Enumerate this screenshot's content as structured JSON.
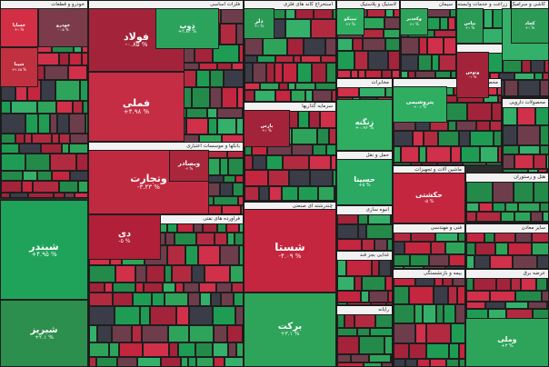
{
  "chart_data": {
    "type": "heatmap",
    "sectors": [
      {
        "key": "khodro",
        "label": "خودرو و قطعات"
      },
      {
        "key": "felezat",
        "label": "فلزات اساسی"
      },
      {
        "key": "banks",
        "label": "بانکها و موسسات اعتباری"
      },
      {
        "key": "mali",
        "label": "فراورده های نفتی"
      },
      {
        "key": "kani",
        "label": "استخراج کانه های فلزی"
      },
      {
        "key": "lastik",
        "label": "لاستیک و پلاستیک"
      },
      {
        "key": "siman",
        "label": "سیمان"
      },
      {
        "key": "zeraat",
        "label": "زراعت و خدمات وابسته"
      },
      {
        "key": "kashi",
        "label": "کاشی و سرامیک"
      },
      {
        "key": "ghand",
        "label": "قند و شکر"
      },
      {
        "key": "sarmaye",
        "label": "سرمایه گذاریها"
      },
      {
        "key": "mokhaberat",
        "label": "مخابرات"
      },
      {
        "key": "shimi",
        "label": "محصولات شیمیایی"
      },
      {
        "key": "daroo",
        "label": "محصولات دارویی"
      },
      {
        "key": "haml",
        "label": "حمل و نقل"
      },
      {
        "key": "chandreshte",
        "label": "چندرشته ای صنعتی"
      },
      {
        "key": "electric",
        "label": "ماشین آلات و تجهیزات"
      },
      {
        "key": "hoteling",
        "label": "هتل و رستوران"
      },
      {
        "key": "sakhteman",
        "label": "انبوه سازی"
      },
      {
        "key": "ghaza",
        "label": "غذایی بجز قند"
      },
      {
        "key": "fanni",
        "label": "فنی و مهندسی"
      },
      {
        "key": "madan",
        "label": "سایر معادن"
      },
      {
        "key": "kaghaz",
        "label": "محصولات کاغذی"
      },
      {
        "key": "narmafzar",
        "label": "رایانه"
      },
      {
        "key": "bime",
        "label": "بیمه و بازنشستگی"
      },
      {
        "key": "bargh",
        "label": "عرضه برق"
      }
    ],
    "tiles": [
      {
        "symbol": "شپنا",
        "change": "+۲.۷۵ %"
      },
      {
        "symbol": "شبندر",
        "change": "+۴.۹۵ %"
      },
      {
        "symbol": "شبریز",
        "change": "+۲.۱ %"
      },
      {
        "symbol": "فولاد",
        "change": "-۰.۸۵ %"
      },
      {
        "symbol": "فملی",
        "change": "+۴.۹۸ %"
      },
      {
        "symbol": "وتجارت",
        "change": "-۳.۴۳ %"
      },
      {
        "symbol": "دی",
        "change": "-۵ %"
      },
      {
        "symbol": "وبصادر",
        "change": "-۲ %"
      },
      {
        "symbol": "ذوب",
        "change": "+۲.۸۳ %"
      },
      {
        "symbol": "شستا",
        "change": "-۴.۰۹ %"
      },
      {
        "symbol": "برکت",
        "change": "+۳.۱ %"
      },
      {
        "symbol": "زنگنه",
        "change": "+۰.۹۶ %"
      },
      {
        "symbol": "حسینا",
        "change": "+۵ %"
      },
      {
        "symbol": "حکشتی",
        "change": "-۵ %"
      },
      {
        "symbol": "کگل",
        "change": "+۲.۵ %"
      },
      {
        "symbol": "وملی",
        "change": "+۳ %"
      },
      {
        "symbol": "دلر",
        "change": "+۱ %"
      },
      {
        "symbol": "وکغدیر",
        "change": "+۲ %"
      },
      {
        "symbol": "تیپیکو",
        "change": "+۲ %"
      },
      {
        "symbol": "بپاس",
        "change": "+۱ %"
      },
      {
        "symbol": "وتوس",
        "change": "-۱ %"
      },
      {
        "symbol": "کچاد",
        "change": "+۱ %"
      },
      {
        "symbol": "خودرو",
        "change": "-۰.۵ %"
      },
      {
        "symbol": "خساپا",
        "change": "+۱ %"
      },
      {
        "symbol": "پارس",
        "change": "+۱ %"
      },
      {
        "symbol": "پتروشیمی",
        "change": "+۰.۶ %"
      }
    ]
  }
}
